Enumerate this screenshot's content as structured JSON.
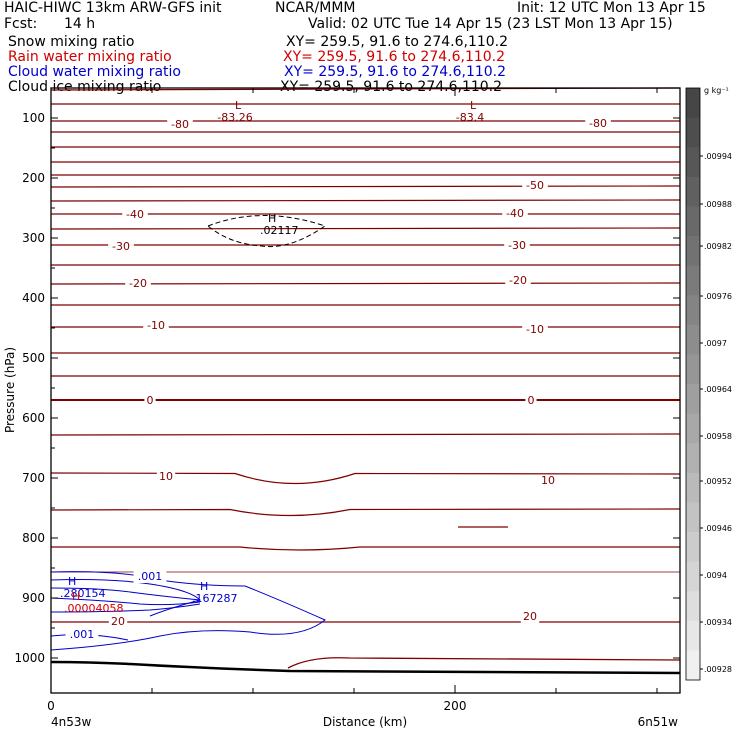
{
  "header": {
    "title_left": "HAIC-HIWC 13km ARW-GFS init",
    "institution": "NCAR/MMM",
    "init": "Init: 12 UTC Mon 13 Apr 15",
    "fcst_label": "Fcst:",
    "fcst_value": "14 h",
    "valid": "Valid: 02 UTC Tue 14 Apr 15 (23 LST Mon 13 Apr 15)",
    "fields": [
      {
        "name": "Snow mixing ratio",
        "xy": "XY= 259.5, 91.6 to 274.6,110.2",
        "color": "#000000"
      },
      {
        "name": "Rain water mixing ratio",
        "xy": "XY= 259.5, 91.6 to 274.6,110.2",
        "color": "#d00000"
      },
      {
        "name": "Cloud water mixing ratio",
        "xy": "XY= 259.5, 91.6 to 274.6,110.2",
        "color": "#0000cc"
      },
      {
        "name": "Cloud ice mixing ratio",
        "xy": "XY= 259.5, 91.6 to 274.6,110.2",
        "color": "#000000"
      }
    ]
  },
  "chart_data": {
    "type": "cross-section contour",
    "ylabel": "Pressure (hPa)",
    "xlabel": "Distance (km)",
    "y_axis": "pressure, reversed",
    "yticks": [
      100,
      200,
      300,
      400,
      500,
      600,
      700,
      800,
      900,
      1000
    ],
    "xticks": [
      0,
      200
    ],
    "ylim": [
      50,
      1040
    ],
    "xlim": [
      0,
      310
    ],
    "x_endpoint_labels": [
      "4n53w",
      "6n51w"
    ],
    "temperature_contour_color": "#800000",
    "temperature_contours": [
      {
        "value": -80,
        "label": "-80"
      },
      {
        "value": -50,
        "label": "-50"
      },
      {
        "value": -40,
        "label": "-40"
      },
      {
        "value": -30,
        "label": "-30"
      },
      {
        "value": -20,
        "label": "-20"
      },
      {
        "value": -10,
        "label": "-10"
      },
      {
        "value": 0,
        "label": "0"
      },
      {
        "value": 10,
        "label": "10"
      },
      {
        "value": 20,
        "label": "20"
      }
    ],
    "extrema_labels": [
      {
        "type": "L",
        "value": "-83.26",
        "x": 90,
        "p": 110
      },
      {
        "type": "L",
        "value": "-83.4",
        "x": 205,
        "p": 110
      },
      {
        "type": "H",
        "value": ".02117",
        "x": 108,
        "p": 280
      },
      {
        "type": "H",
        "value": ".280154",
        "x": 8,
        "p": 895
      },
      {
        "type": "H",
        "value": ".167287",
        "x": 72,
        "p": 895
      },
      {
        "type": "H",
        "value": ".00004058",
        "x": 10,
        "p": 915
      }
    ],
    "cloud_water_labels": [
      ".001",
      ".001"
    ],
    "colorbar": {
      "unit": "g kg⁻¹",
      "labels": [
        ".00994",
        ".00988",
        ".00982",
        ".00976",
        ".0097",
        ".00964",
        ".00958",
        ".00952",
        ".00946",
        ".0094",
        ".00934",
        ".00928"
      ]
    }
  }
}
